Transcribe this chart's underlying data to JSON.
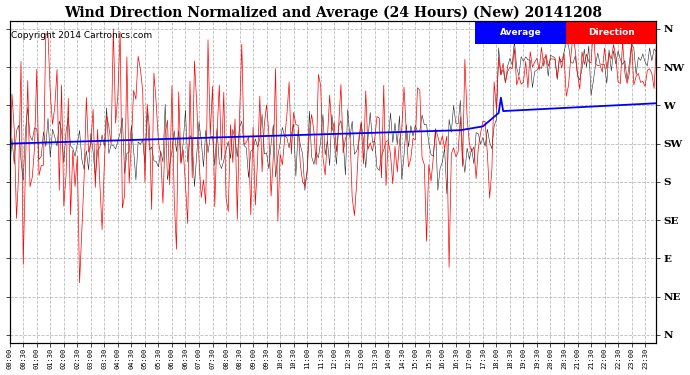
{
  "title": "Wind Direction Normalized and Average (24 Hours) (New) 20141208",
  "copyright": "Copyright 2014 Cartronics.com",
  "ylabel_right": [
    "N",
    "NW",
    "W",
    "SW",
    "S",
    "SE",
    "E",
    "NE",
    "N"
  ],
  "ytick_vals": [
    8,
    7,
    6,
    5,
    4,
    3,
    2,
    1,
    0
  ],
  "ylim": [
    -0.2,
    8.2
  ],
  "avg_color": "blue",
  "dir_color": "red",
  "raw_color": "black",
  "bg_color": "#ffffff",
  "plot_bg_color": "#ffffff",
  "grid_color": "#bbbbbb",
  "title_fontsize": 10,
  "copyright_fontsize": 6.5,
  "axis_fontsize": 6
}
